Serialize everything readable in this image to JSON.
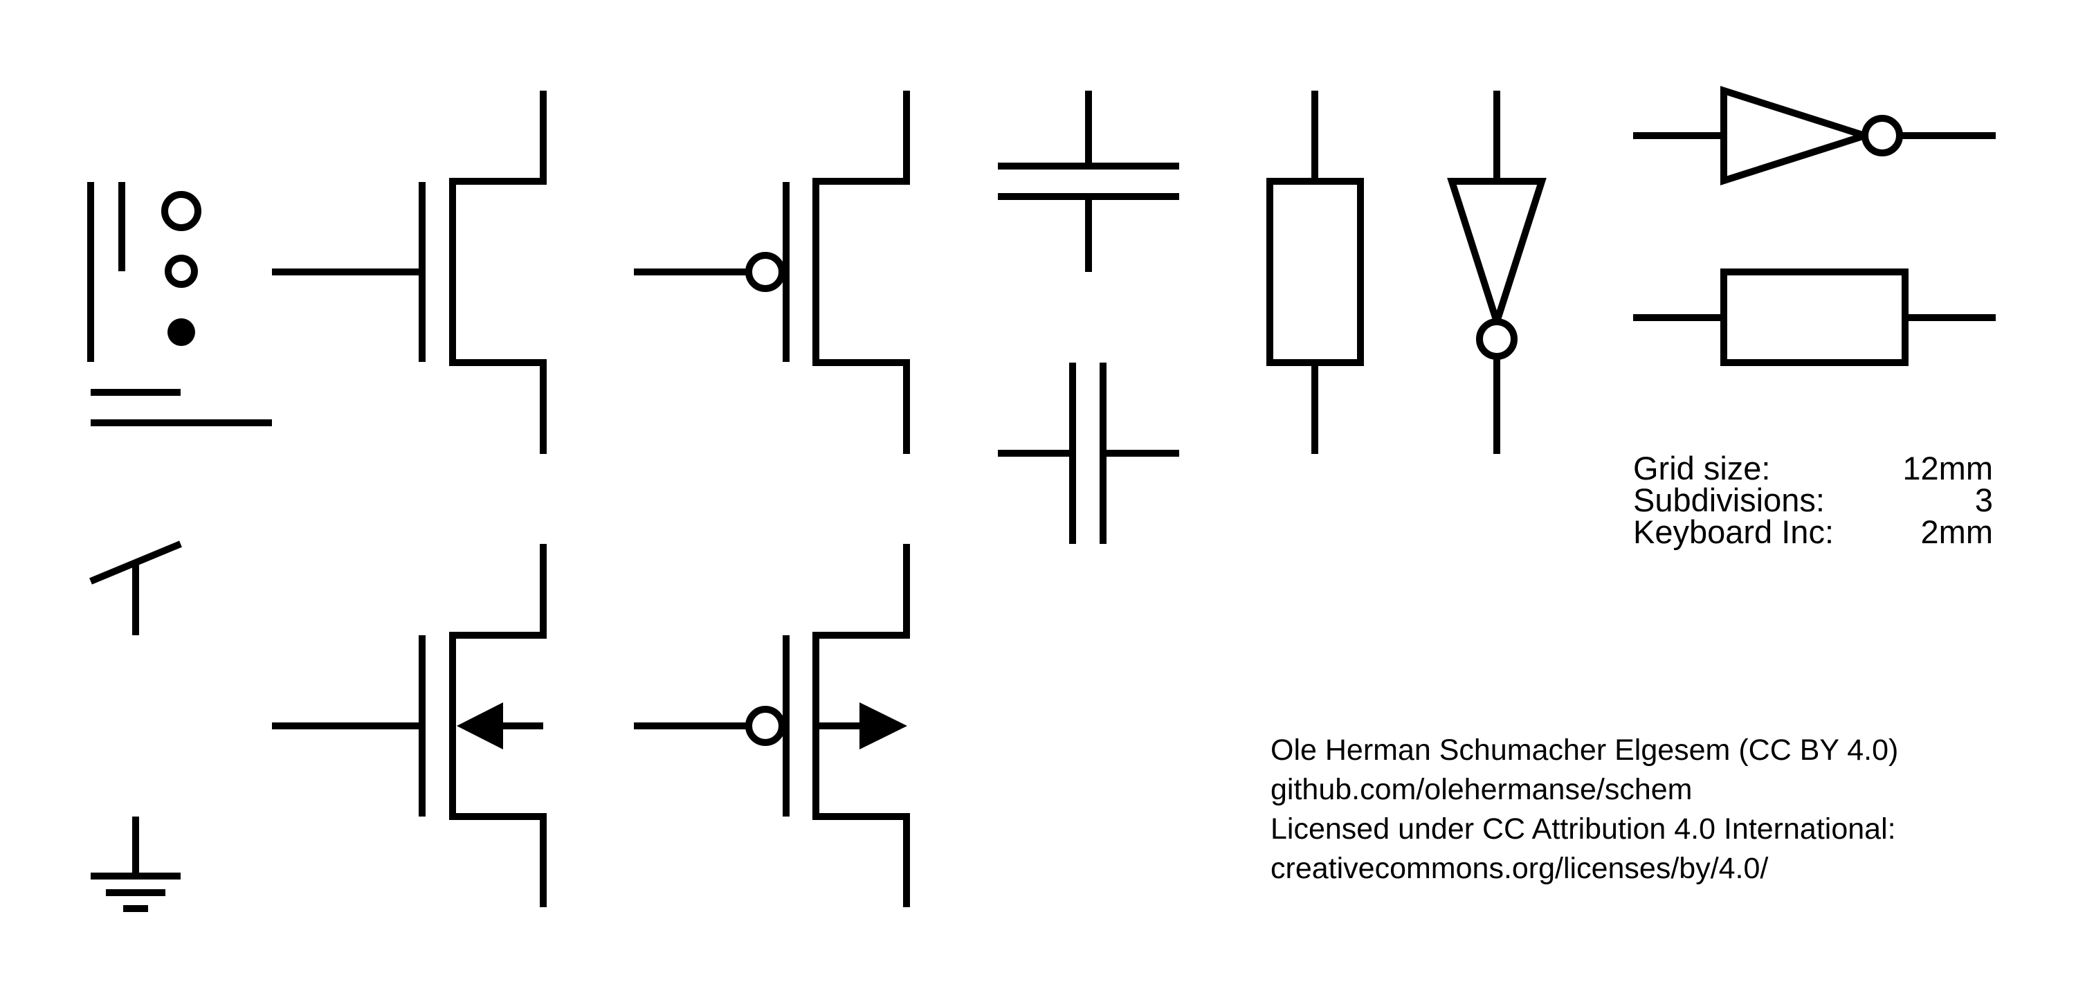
{
  "settings": {
    "rows": [
      {
        "label": "Grid size:",
        "value": "12mm"
      },
      {
        "label": "Subdivisions:",
        "value": "3"
      },
      {
        "label": "Keyboard Inc:",
        "value": "2mm"
      }
    ]
  },
  "credits": {
    "lines": [
      "Ole Herman Schumacher Elgesem (CC BY 4.0)",
      "github.com/olehermanse/schem",
      "Licensed under CC Attribution 4.0 International:",
      "creativecommons.org/licenses/by/4.0/"
    ]
  },
  "symbols": [
    {
      "name": "wire-tool-icon"
    },
    {
      "name": "node-size-icon"
    },
    {
      "name": "nmos-transistor-symbol"
    },
    {
      "name": "pmos-transistor-symbol"
    },
    {
      "name": "capacitor-vertical-symbol"
    },
    {
      "name": "capacitor-horizontal-symbol"
    },
    {
      "name": "resistor-vertical-symbol"
    },
    {
      "name": "inverter-vertical-symbol"
    },
    {
      "name": "inverter-horizontal-symbol"
    },
    {
      "name": "resistor-horizontal-symbol"
    },
    {
      "name": "switch-symbol"
    },
    {
      "name": "ground-symbol"
    },
    {
      "name": "nmos-arrow-transistor-symbol"
    },
    {
      "name": "pmos-arrow-transistor-symbol"
    }
  ]
}
